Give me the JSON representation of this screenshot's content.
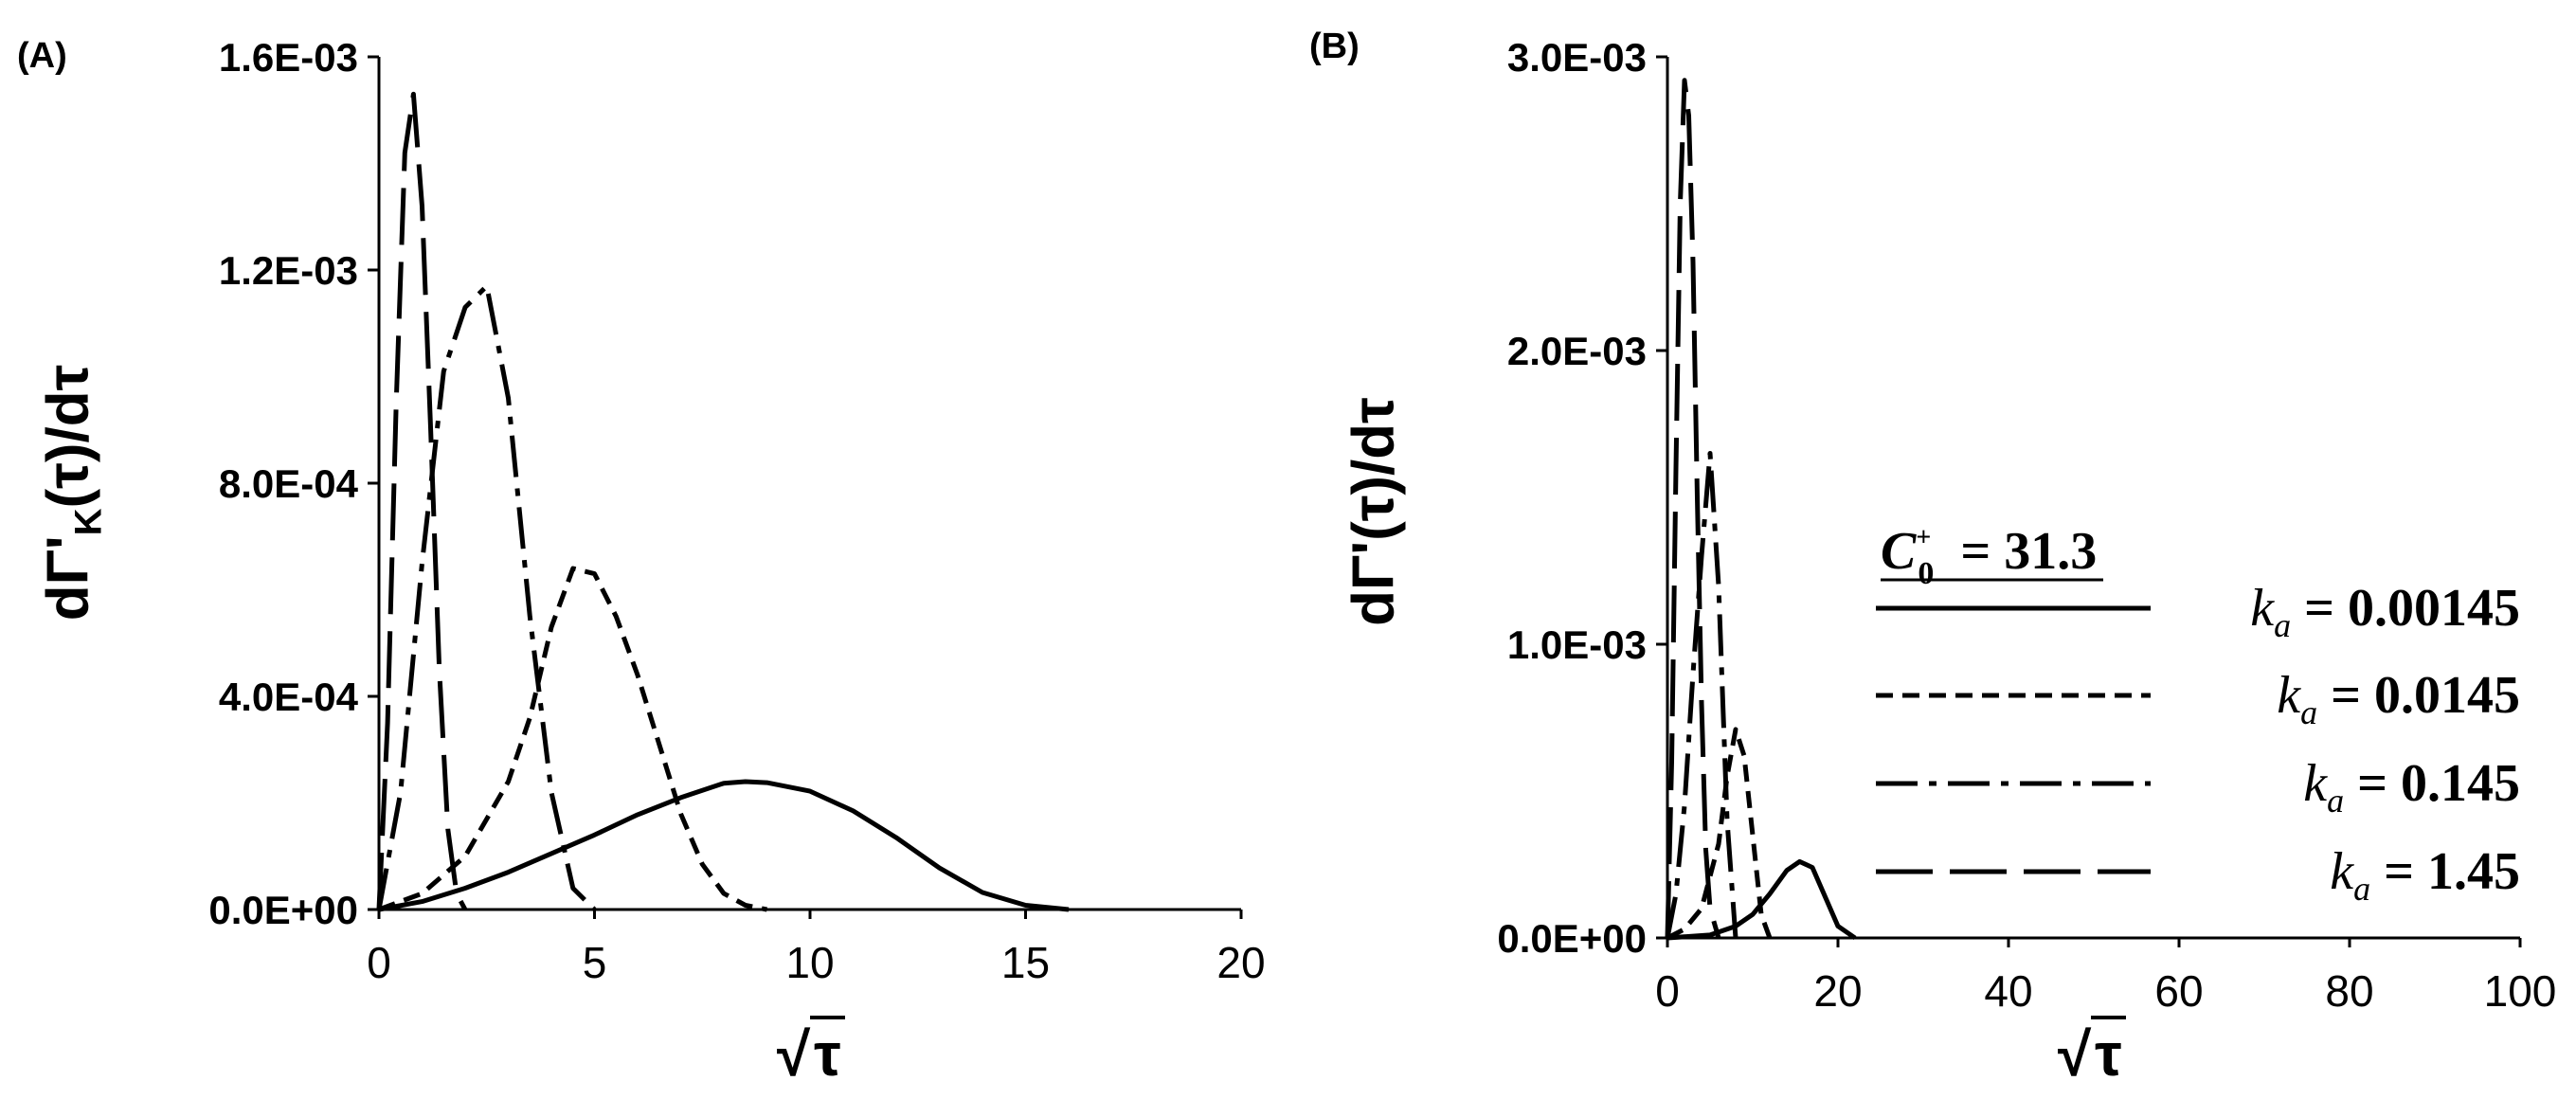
{
  "figure": {
    "panels": [
      {
        "label": "(A)",
        "ylabel_main": "dΓ'",
        "ylabel_sub": "K",
        "ylabel_tail": "(τ)/dτ",
        "xlabel": "τ"
      },
      {
        "label": "(B)",
        "ylabel_main": "dΓ'(τ)/dτ",
        "xlabel": "τ"
      }
    ],
    "legend": {
      "title_var": "C",
      "title_sub": "0",
      "title_sup": "+",
      "title_value": "= 31.3",
      "entries": [
        {
          "var": "k",
          "sub": "a",
          "value": "= 0.00145",
          "style": "solid"
        },
        {
          "var": "k",
          "sub": "a",
          "value": "= 0.0145",
          "style": "short-dash"
        },
        {
          "var": "k",
          "sub": "a",
          "value": "= 0.145",
          "style": "dash-dot"
        },
        {
          "var": "k",
          "sub": "a",
          "value": "= 1.45",
          "style": "long-dash"
        }
      ]
    }
  },
  "chart_data": [
    {
      "type": "line",
      "panel": "A",
      "xlabel": "√τ",
      "ylabel": "dΓ'K(τ)/dτ",
      "xlim": [
        0,
        20
      ],
      "ylim": [
        0,
        0.0016
      ],
      "xticks": [
        "0",
        "5",
        "10",
        "15",
        "20"
      ],
      "yticks": [
        "0.0E+00",
        "4.0E-04",
        "8.0E-04",
        "1.2E-03",
        "1.6E-03"
      ],
      "series": [
        {
          "name": "k_a = 0.00145",
          "style": "solid",
          "x": [
            0,
            1,
            2,
            3,
            4,
            5,
            6,
            7,
            8,
            8.5,
            9,
            10,
            11,
            12,
            13,
            14,
            15,
            16
          ],
          "y": [
            0,
            1.5e-05,
            4e-05,
            7e-05,
            0.000105,
            0.00014,
            0.000178,
            0.00021,
            0.000237,
            0.00024,
            0.000238,
            0.000222,
            0.000185,
            0.000135,
            7.8e-05,
            3.2e-05,
            8e-06,
            0
          ]
        },
        {
          "name": "k_a = 0.0145",
          "style": "short-dash",
          "x": [
            0,
            1,
            2,
            3,
            3.5,
            4,
            4.5,
            5,
            5.5,
            6,
            6.5,
            7,
            7.5,
            8,
            8.5,
            9
          ],
          "y": [
            0,
            3e-05,
            0.0001,
            0.00024,
            0.00036,
            0.00053,
            0.00064,
            0.00063,
            0.00055,
            0.00044,
            0.00031,
            0.00018,
            8.5e-05,
            3e-05,
            8e-06,
            0
          ]
        },
        {
          "name": "k_a = 0.145",
          "style": "dash-dot",
          "x": [
            0,
            0.5,
            1,
            1.5,
            2,
            2.5,
            3,
            3.5,
            4,
            4.5,
            5
          ],
          "y": [
            0,
            0.00022,
            0.00065,
            0.00101,
            0.00113,
            0.00117,
            0.00096,
            0.00055,
            0.00022,
            4e-05,
            0
          ]
        },
        {
          "name": "k_a = 1.45",
          "style": "long-dash",
          "x": [
            0,
            0.2,
            0.4,
            0.6,
            0.8,
            1.0,
            1.2,
            1.4,
            1.6,
            1.8,
            2.0
          ],
          "y": [
            0,
            0.00035,
            0.00095,
            0.00142,
            0.00153,
            0.00132,
            0.0009,
            0.00045,
            0.00015,
            3e-05,
            0
          ]
        }
      ]
    },
    {
      "type": "line",
      "panel": "B",
      "xlabel": "√τ",
      "ylabel": "dΓ'(τ)/dτ",
      "xlim": [
        0,
        100
      ],
      "ylim": [
        0,
        0.003
      ],
      "xticks": [
        "0",
        "20",
        "40",
        "60",
        "80",
        "100"
      ],
      "yticks": [
        "0.0E+00",
        "1.0E-03",
        "2.0E-03",
        "3.0E-03"
      ],
      "series": [
        {
          "name": "k_a = 0.00145",
          "style": "solid",
          "x": [
            0,
            5,
            8,
            10,
            12,
            14,
            15.5,
            17,
            18.5,
            20,
            22
          ],
          "y": [
            0,
            1e-05,
            4e-05,
            8e-05,
            0.00015,
            0.00023,
            0.00026,
            0.00024,
            0.00014,
            4e-05,
            0
          ]
        },
        {
          "name": "k_a = 0.0145",
          "style": "short-dash",
          "x": [
            0,
            2,
            4,
            6,
            7,
            8,
            9,
            10,
            11,
            12
          ],
          "y": [
            0,
            3e-05,
            0.0001,
            0.00032,
            0.00055,
            0.00071,
            0.00062,
            0.00035,
            8e-05,
            0
          ]
        },
        {
          "name": "k_a = 0.145",
          "style": "dash-dot",
          "x": [
            0,
            1,
            2,
            3,
            4,
            5,
            6,
            7,
            8
          ],
          "y": [
            0,
            0.00015,
            0.00045,
            0.0009,
            0.0013,
            0.00165,
            0.0012,
            0.0004,
            0
          ]
        },
        {
          "name": "k_a = 1.45",
          "style": "long-dash",
          "x": [
            0,
            0.5,
            1,
            1.5,
            2,
            2.5,
            3,
            3.5,
            4,
            4.5,
            5,
            6
          ],
          "y": [
            0,
            0.0006,
            0.0016,
            0.0025,
            0.00292,
            0.0028,
            0.0023,
            0.0015,
            0.0008,
            0.0003,
            0.0001,
            0
          ]
        }
      ]
    }
  ]
}
